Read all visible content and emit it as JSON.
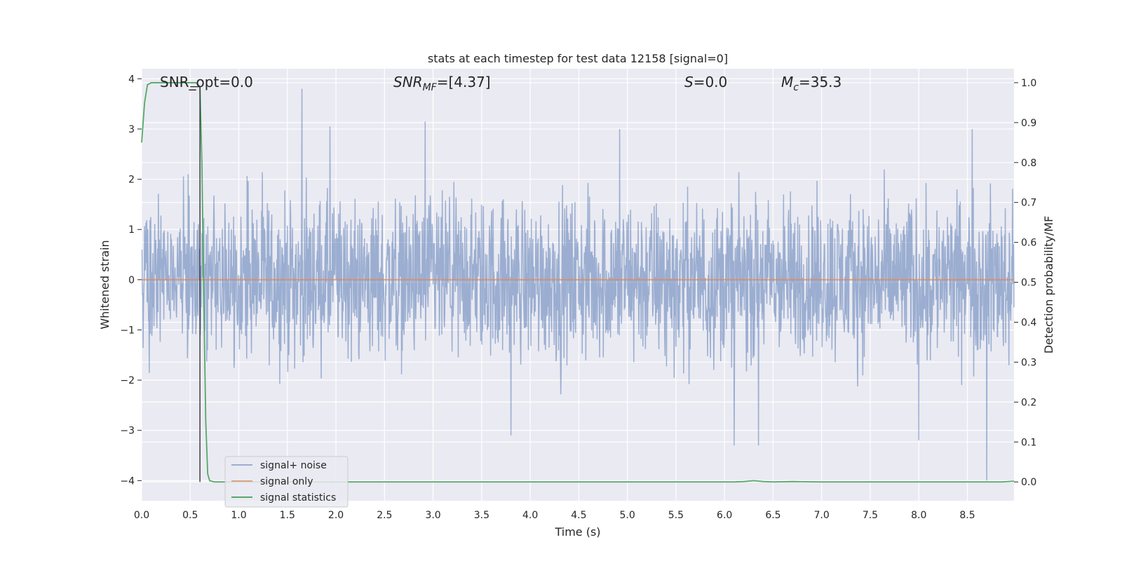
{
  "chart_data": {
    "type": "line",
    "title": "stats at each timestep for test data 12158 [signal=0]",
    "xlabel": "Time (s)",
    "ylabel": "Whitened strain",
    "y2label": "Detection probability/MF",
    "xlim": [
      0.0,
      8.98
    ],
    "ylim": [
      -4.4,
      4.2
    ],
    "y2lim": [
      -0.047,
      1.035
    ],
    "xticks": [
      "0.0",
      "0.5",
      "1.0",
      "1.5",
      "2.0",
      "2.5",
      "3.0",
      "3.5",
      "4.0",
      "4.5",
      "5.0",
      "5.5",
      "6.0",
      "6.5",
      "7.0",
      "7.5",
      "8.0",
      "8.5"
    ],
    "yticks": [
      "4",
      "3",
      "2",
      "1",
      "0",
      "−1",
      "−2",
      "−3",
      "−4"
    ],
    "y2ticks": [
      "1.0",
      "0.9",
      "0.8",
      "0.7",
      "0.6",
      "0.5",
      "0.4",
      "0.3",
      "0.2",
      "0.1",
      "0.0"
    ],
    "grid": true,
    "legend_placement": "lower-left",
    "annotations": {
      "snr_opt": "SNR_opt=0.0",
      "snr_mf_main": "SNR",
      "snr_mf_sub": "MF",
      "snr_mf_value": "=[4.37]",
      "s_main": "S",
      "s_value": "=0.0",
      "mc_main": "M",
      "mc_sub": "c",
      "mc_value": "=35.3"
    },
    "series": [
      {
        "name": "signal+ noise",
        "color": "#4c72b0",
        "axis": "left",
        "description_values": {
          "typical_envelope": [
            -1.7,
            1.7
          ],
          "peaks_x": [
            1.65,
            1.94,
            2.92,
            4.92,
            8.55
          ],
          "peaks_y": [
            3.8,
            3.05,
            3.15,
            3.0,
            3.0
          ],
          "troughs_x": [
            3.8,
            6.1,
            6.35,
            8.0,
            8.7
          ],
          "troughs_y": [
            -3.1,
            -3.3,
            -3.3,
            -3.2,
            -4.0
          ]
        }
      },
      {
        "name": "signal only",
        "color": "#dd8452",
        "axis": "left",
        "x": [
          0.0,
          8.98
        ],
        "y": [
          0.0,
          0.0
        ]
      },
      {
        "name": "signal statistics",
        "color": "#55a868",
        "axis": "right",
        "x": [
          0.0,
          0.03,
          0.06,
          0.1,
          0.15,
          0.2,
          0.3,
          0.4,
          0.5,
          0.56,
          0.6,
          0.62,
          0.64,
          0.66,
          0.68,
          0.7,
          0.75,
          0.8,
          1.0,
          2.0,
          3.0,
          4.0,
          5.0,
          5.9,
          6.1,
          6.2,
          6.3,
          6.4,
          6.5,
          6.7,
          7.0,
          8.0,
          8.5,
          8.85,
          8.98
        ],
        "y": [
          0.85,
          0.95,
          0.995,
          1.0,
          1.0,
          1.0,
          1.0,
          1.0,
          1.0,
          1.0,
          0.99,
          0.8,
          0.45,
          0.15,
          0.02,
          0.003,
          0.0,
          0.0,
          0.0,
          0.0,
          0.0,
          0.0,
          0.0,
          0.0,
          0.0,
          0.001,
          0.003,
          0.001,
          0.0,
          0.001,
          0.0,
          0.0,
          0.0,
          0.0,
          0.002
        ]
      }
    ],
    "marker_line": {
      "color": "#262626",
      "x": [
        0.5,
        0.6,
        0.6
      ],
      "y_right": [
        0.99,
        0.99,
        0.0
      ]
    }
  }
}
